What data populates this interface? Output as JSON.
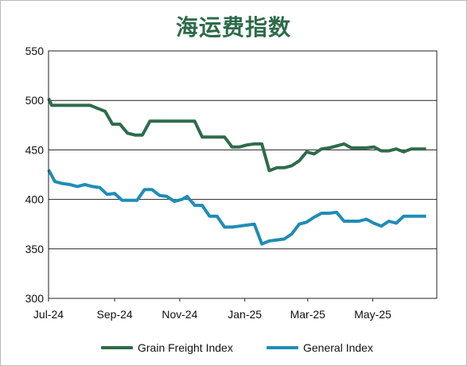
{
  "chart_data": {
    "type": "line",
    "title": "海运费指数",
    "xlabel": "",
    "ylabel": "",
    "ylim": [
      300,
      550
    ],
    "yticks": [
      300,
      350,
      400,
      450,
      500,
      550
    ],
    "xlim": [
      "2024-07-01",
      "2025-06-30"
    ],
    "xtick_labels": [
      {
        "date": "2024-07-01",
        "label": "Jul-24"
      },
      {
        "date": "2024-09-01",
        "label": "Sep-24"
      },
      {
        "date": "2024-11-01",
        "label": "Nov-24"
      },
      {
        "date": "2025-01-01",
        "label": "Jan-25"
      },
      {
        "date": "2025-03-01",
        "label": "Mar-25"
      },
      {
        "date": "2025-05-01",
        "label": "May-25"
      }
    ],
    "grid": "horizontal",
    "legend": "bottom",
    "series": [
      {
        "name": "Grain Freight Index",
        "color": "#2e6b4a",
        "points": [
          [
            "2024-07-01",
            502
          ],
          [
            "2024-07-04",
            495
          ],
          [
            "2024-07-12",
            495
          ],
          [
            "2024-07-19",
            495
          ],
          [
            "2024-07-26",
            495
          ],
          [
            "2024-08-02",
            495
          ],
          [
            "2024-08-09",
            495
          ],
          [
            "2024-08-16",
            492
          ],
          [
            "2024-08-23",
            489
          ],
          [
            "2024-08-30",
            476
          ],
          [
            "2024-09-06",
            476
          ],
          [
            "2024-09-13",
            467
          ],
          [
            "2024-09-20",
            465
          ],
          [
            "2024-09-27",
            465
          ],
          [
            "2024-10-04",
            479
          ],
          [
            "2024-10-11",
            479
          ],
          [
            "2024-10-18",
            479
          ],
          [
            "2024-10-25",
            479
          ],
          [
            "2024-11-01",
            479
          ],
          [
            "2024-11-08",
            479
          ],
          [
            "2024-11-15",
            479
          ],
          [
            "2024-11-22",
            463
          ],
          [
            "2024-11-29",
            463
          ],
          [
            "2024-12-06",
            463
          ],
          [
            "2024-12-13",
            463
          ],
          [
            "2024-12-20",
            453
          ],
          [
            "2024-12-27",
            453
          ],
          [
            "2025-01-03",
            455
          ],
          [
            "2025-01-10",
            456
          ],
          [
            "2025-01-17",
            456
          ],
          [
            "2025-01-24",
            429
          ],
          [
            "2025-01-31",
            432
          ],
          [
            "2025-02-07",
            432
          ],
          [
            "2025-02-14",
            434
          ],
          [
            "2025-02-21",
            439
          ],
          [
            "2025-02-28",
            448
          ],
          [
            "2025-03-07",
            446
          ],
          [
            "2025-03-14",
            451
          ],
          [
            "2025-03-21",
            452
          ],
          [
            "2025-03-28",
            454
          ],
          [
            "2025-04-04",
            456
          ],
          [
            "2025-04-11",
            452
          ],
          [
            "2025-04-18",
            452
          ],
          [
            "2025-04-25",
            452
          ],
          [
            "2025-05-02",
            453
          ],
          [
            "2025-05-09",
            449
          ],
          [
            "2025-05-16",
            449
          ],
          [
            "2025-05-23",
            451
          ],
          [
            "2025-05-30",
            448
          ],
          [
            "2025-06-06",
            451
          ],
          [
            "2025-06-13",
            451
          ],
          [
            "2025-06-20",
            451
          ]
        ]
      },
      {
        "name": "General Index",
        "color": "#1f8db5",
        "points": [
          [
            "2024-07-01",
            430
          ],
          [
            "2024-07-07",
            418
          ],
          [
            "2024-07-14",
            416
          ],
          [
            "2024-07-21",
            415
          ],
          [
            "2024-07-28",
            413
          ],
          [
            "2024-08-04",
            415
          ],
          [
            "2024-08-11",
            413
          ],
          [
            "2024-08-18",
            412
          ],
          [
            "2024-08-25",
            405
          ],
          [
            "2024-09-01",
            406
          ],
          [
            "2024-09-08",
            399
          ],
          [
            "2024-09-15",
            399
          ],
          [
            "2024-09-22",
            399
          ],
          [
            "2024-09-29",
            410
          ],
          [
            "2024-10-06",
            410
          ],
          [
            "2024-10-13",
            404
          ],
          [
            "2024-10-20",
            403
          ],
          [
            "2024-10-27",
            398
          ],
          [
            "2024-11-03",
            400
          ],
          [
            "2024-11-08",
            403
          ],
          [
            "2024-11-15",
            394
          ],
          [
            "2024-11-22",
            394
          ],
          [
            "2024-11-29",
            383
          ],
          [
            "2024-12-06",
            383
          ],
          [
            "2024-12-13",
            372
          ],
          [
            "2024-12-20",
            372
          ],
          [
            "2024-12-27",
            373
          ],
          [
            "2025-01-03",
            374
          ],
          [
            "2025-01-10",
            375
          ],
          [
            "2025-01-17",
            355
          ],
          [
            "2025-01-24",
            358
          ],
          [
            "2025-01-31",
            359
          ],
          [
            "2025-02-07",
            360
          ],
          [
            "2025-02-14",
            365
          ],
          [
            "2025-02-21",
            375
          ],
          [
            "2025-02-28",
            377
          ],
          [
            "2025-03-07",
            382
          ],
          [
            "2025-03-14",
            386
          ],
          [
            "2025-03-21",
            386
          ],
          [
            "2025-03-28",
            387
          ],
          [
            "2025-04-04",
            378
          ],
          [
            "2025-04-11",
            378
          ],
          [
            "2025-04-18",
            378
          ],
          [
            "2025-04-25",
            380
          ],
          [
            "2025-05-02",
            376
          ],
          [
            "2025-05-09",
            373
          ],
          [
            "2025-05-16",
            378
          ],
          [
            "2025-05-23",
            376
          ],
          [
            "2025-05-30",
            383
          ],
          [
            "2025-06-06",
            383
          ],
          [
            "2025-06-13",
            383
          ],
          [
            "2025-06-20",
            383
          ]
        ]
      }
    ]
  }
}
